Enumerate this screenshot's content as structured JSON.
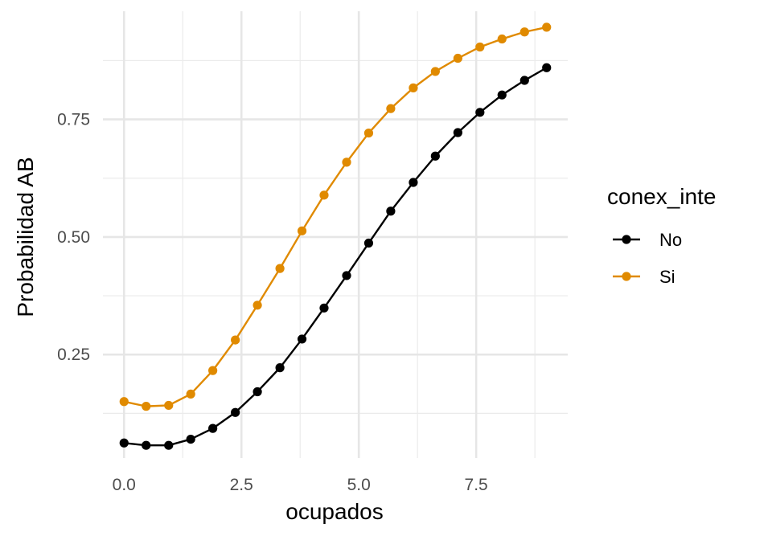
{
  "chart_data": {
    "type": "line",
    "xlabel": "ocupados",
    "ylabel": "Probabilidad AB",
    "xlim": [
      -0.45,
      9.45
    ],
    "ylim": [
      0.03,
      0.98
    ],
    "x_ticks": [
      {
        "value": 0.0,
        "label": "0.0"
      },
      {
        "value": 2.5,
        "label": "2.5"
      },
      {
        "value": 5.0,
        "label": "5.0"
      },
      {
        "value": 7.5,
        "label": "7.5"
      }
    ],
    "y_ticks": [
      {
        "value": 0.25,
        "label": "0.25"
      },
      {
        "value": 0.5,
        "label": "0.50"
      },
      {
        "value": 0.75,
        "label": "0.75"
      }
    ],
    "grid": true,
    "legend": {
      "title": "conex_inte",
      "position": "right"
    },
    "x": [
      0.0,
      0.47,
      0.95,
      1.42,
      1.89,
      2.37,
      2.84,
      3.32,
      3.79,
      4.26,
      4.74,
      5.21,
      5.68,
      6.16,
      6.63,
      7.11,
      7.58,
      8.05,
      8.53,
      9.0
    ],
    "series": [
      {
        "name": "No",
        "color": "#000000",
        "values": [
          0.062,
          0.057,
          0.057,
          0.07,
          0.093,
          0.127,
          0.171,
          0.222,
          0.283,
          0.349,
          0.418,
          0.487,
          0.555,
          0.616,
          0.672,
          0.722,
          0.765,
          0.802,
          0.833,
          0.86
        ]
      },
      {
        "name": "Si",
        "color": "#E08A00",
        "values": [
          0.15,
          0.14,
          0.142,
          0.166,
          0.216,
          0.281,
          0.355,
          0.433,
          0.513,
          0.589,
          0.659,
          0.721,
          0.773,
          0.817,
          0.852,
          0.88,
          0.904,
          0.921,
          0.936,
          0.946
        ]
      }
    ]
  }
}
